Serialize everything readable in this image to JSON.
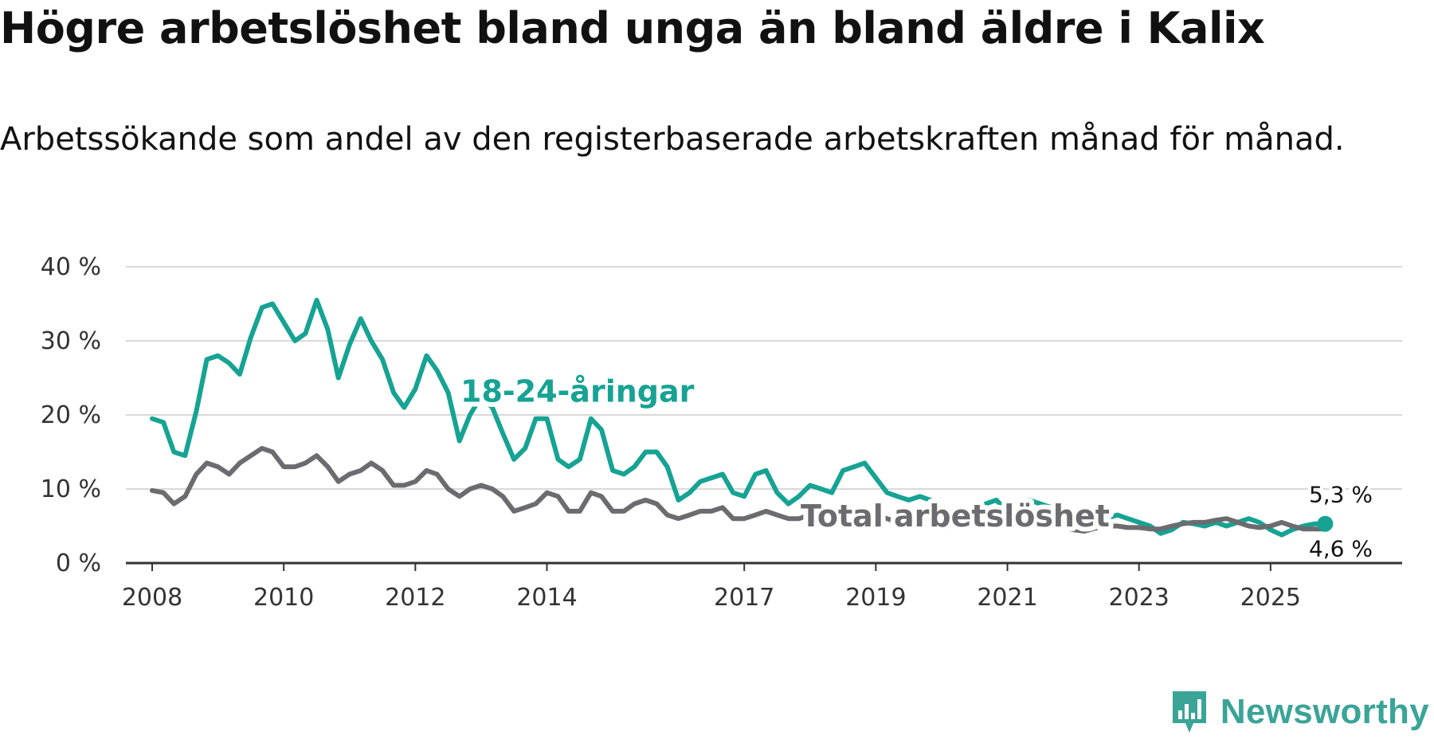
{
  "title": "Högre arbetslöshet bland unga än bland äldre i Kalix",
  "subtitle": "Arbetssökande som andel av den registerbaserade arbetskraften månad för månad.",
  "brand": {
    "name": "Newsworthy",
    "icon": "bar-chart-bubble-icon",
    "color": "#3aa497"
  },
  "chart_data": {
    "type": "line",
    "title": "Högre arbetslöshet bland unga än bland äldre i Kalix",
    "xlabel": "",
    "ylabel": "",
    "xlim": [
      2007.6,
      2027.0
    ],
    "ylim": [
      0,
      40
    ],
    "grid": true,
    "y_ticks": [
      0,
      10,
      20,
      30,
      40
    ],
    "y_tick_labels": [
      "0 %",
      "10 %",
      "20 %",
      "30 %",
      "40 %"
    ],
    "x_ticks": [
      2008,
      2010,
      2012,
      2014,
      2017,
      2019,
      2021,
      2023,
      2025
    ],
    "x_tick_labels": [
      "2008",
      "2010",
      "2012",
      "2014",
      "2017",
      "2019",
      "2021",
      "2023",
      "2025"
    ],
    "end_labels": {
      "youth": "5,3 %",
      "total": "4,6 %"
    },
    "series": [
      {
        "name": "18-24-åringar",
        "color": "#16a393",
        "x": [
          2008.0,
          2008.17,
          2008.33,
          2008.5,
          2008.67,
          2008.83,
          2009.0,
          2009.17,
          2009.33,
          2009.5,
          2009.67,
          2009.83,
          2010.0,
          2010.17,
          2010.33,
          2010.5,
          2010.67,
          2010.83,
          2011.0,
          2011.17,
          2011.33,
          2011.5,
          2011.67,
          2011.83,
          2012.0,
          2012.17,
          2012.33,
          2012.5,
          2012.67,
          2012.83,
          2013.0,
          2013.17,
          2013.33,
          2013.5,
          2013.67,
          2013.83,
          2014.0,
          2014.17,
          2014.33,
          2014.5,
          2014.67,
          2014.83,
          2015.0,
          2015.17,
          2015.33,
          2015.5,
          2015.67,
          2015.83,
          2016.0,
          2016.17,
          2016.33,
          2016.5,
          2016.67,
          2016.83,
          2017.0,
          2017.17,
          2017.33,
          2017.5,
          2017.67,
          2017.83,
          2018.0,
          2018.17,
          2018.33,
          2018.5,
          2018.67,
          2018.83,
          2019.0,
          2019.17,
          2019.33,
          2019.5,
          2019.67,
          2019.83,
          2020.0,
          2020.17,
          2020.33,
          2020.5,
          2020.67,
          2020.83,
          2021.0,
          2021.17,
          2021.33,
          2021.5,
          2021.67,
          2021.83,
          2022.0,
          2022.17,
          2022.33,
          2022.5,
          2022.67,
          2022.83,
          2023.0,
          2023.17,
          2023.33,
          2023.5,
          2023.67,
          2023.83,
          2024.0,
          2024.17,
          2024.33,
          2024.5,
          2024.67,
          2024.83,
          2025.0,
          2025.17,
          2025.33,
          2025.5,
          2025.67,
          2025.83
        ],
        "values": [
          19.5,
          19.0,
          15.0,
          14.5,
          20.5,
          27.5,
          28.0,
          27.0,
          25.5,
          30.5,
          34.5,
          35.0,
          32.5,
          30.0,
          31.0,
          35.5,
          31.5,
          25.0,
          29.5,
          33.0,
          30.0,
          27.5,
          23.0,
          21.0,
          23.5,
          28.0,
          26.0,
          23.0,
          16.5,
          20.0,
          22.5,
          21.0,
          17.5,
          14.0,
          15.5,
          19.5,
          19.5,
          14.0,
          13.0,
          14.0,
          19.5,
          18.0,
          12.5,
          12.0,
          13.0,
          15.0,
          15.0,
          13.0,
          8.5,
          9.5,
          11.0,
          11.5,
          12.0,
          9.5,
          9.0,
          12.0,
          12.5,
          9.5,
          8.0,
          9.0,
          10.5,
          10.0,
          9.5,
          12.5,
          13.0,
          13.5,
          11.5,
          9.5,
          9.0,
          8.5,
          9.0,
          8.5,
          7.0,
          6.0,
          5.5,
          6.5,
          8.0,
          8.5,
          7.0,
          7.5,
          8.5,
          8.0,
          7.5,
          7.0,
          6.5,
          6.0,
          7.0,
          6.0,
          6.5,
          6.0,
          5.5,
          5.0,
          4.0,
          4.5,
          5.5,
          5.3,
          5.0,
          5.5,
          5.0,
          5.5,
          6.0,
          5.5,
          4.5,
          3.8,
          4.5,
          5.0,
          5.3,
          5.3
        ]
      },
      {
        "name": "Total arbetslöshet",
        "color": "#6b6b70",
        "x": [
          2008.0,
          2008.17,
          2008.33,
          2008.5,
          2008.67,
          2008.83,
          2009.0,
          2009.17,
          2009.33,
          2009.5,
          2009.67,
          2009.83,
          2010.0,
          2010.17,
          2010.33,
          2010.5,
          2010.67,
          2010.83,
          2011.0,
          2011.17,
          2011.33,
          2011.5,
          2011.67,
          2011.83,
          2012.0,
          2012.17,
          2012.33,
          2012.5,
          2012.67,
          2012.83,
          2013.0,
          2013.17,
          2013.33,
          2013.5,
          2013.67,
          2013.83,
          2014.0,
          2014.17,
          2014.33,
          2014.5,
          2014.67,
          2014.83,
          2015.0,
          2015.17,
          2015.33,
          2015.5,
          2015.67,
          2015.83,
          2016.0,
          2016.17,
          2016.33,
          2016.5,
          2016.67,
          2016.83,
          2017.0,
          2017.17,
          2017.33,
          2017.5,
          2017.67,
          2017.83,
          2018.0,
          2018.17,
          2018.33,
          2018.5,
          2018.67,
          2018.83,
          2019.0,
          2019.17,
          2019.33,
          2019.5,
          2019.67,
          2019.83,
          2020.0,
          2020.17,
          2020.33,
          2020.5,
          2020.67,
          2020.83,
          2021.0,
          2021.17,
          2021.33,
          2021.5,
          2021.67,
          2021.83,
          2022.0,
          2022.17,
          2022.33,
          2022.5,
          2022.67,
          2022.83,
          2023.0,
          2023.17,
          2023.33,
          2023.5,
          2023.67,
          2023.83,
          2024.0,
          2024.17,
          2024.33,
          2024.5,
          2024.67,
          2024.83,
          2025.0,
          2025.17,
          2025.33,
          2025.5,
          2025.67,
          2025.83
        ],
        "values": [
          9.8,
          9.5,
          8.0,
          9.0,
          12.0,
          13.5,
          13.0,
          12.0,
          13.5,
          14.5,
          15.5,
          15.0,
          13.0,
          13.0,
          13.5,
          14.5,
          13.0,
          11.0,
          12.0,
          12.5,
          13.5,
          12.5,
          10.5,
          10.5,
          11.0,
          12.5,
          12.0,
          10.0,
          9.0,
          10.0,
          10.5,
          10.0,
          9.0,
          7.0,
          7.5,
          8.0,
          9.5,
          9.0,
          7.0,
          7.0,
          9.5,
          9.0,
          7.0,
          7.0,
          8.0,
          8.5,
          8.0,
          6.5,
          6.0,
          6.5,
          7.0,
          7.0,
          7.5,
          6.0,
          6.0,
          6.5,
          7.0,
          6.5,
          6.0,
          6.0,
          6.5,
          6.5,
          6.0,
          6.5,
          6.5,
          7.0,
          6.5,
          6.0,
          5.5,
          5.5,
          6.0,
          6.0,
          5.5,
          5.0,
          5.0,
          5.0,
          5.5,
          5.5,
          5.0,
          5.0,
          5.0,
          4.8,
          5.0,
          4.8,
          4.5,
          4.3,
          4.7,
          5.0,
          5.0,
          4.8,
          4.8,
          4.6,
          4.6,
          5.0,
          5.3,
          5.5,
          5.5,
          5.8,
          6.0,
          5.5,
          5.0,
          4.8,
          5.0,
          5.5,
          5.0,
          4.6,
          4.6,
          4.6
        ]
      }
    ]
  }
}
